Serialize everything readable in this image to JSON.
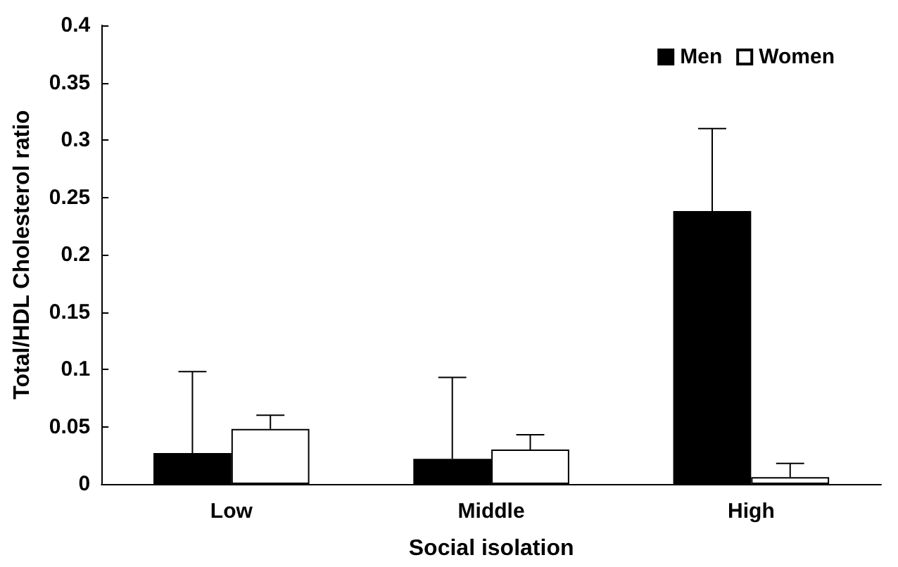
{
  "chart_data": {
    "type": "bar",
    "xlabel": "Social isolation",
    "ylabel": "Total/HDL Cholesterol ratio",
    "categories": [
      "Low",
      "Middle",
      "High"
    ],
    "series": [
      {
        "name": "Men",
        "color": "#000000",
        "values": [
          0.027,
          0.022,
          0.238
        ],
        "errors": [
          [
            0.027,
            0.098
          ],
          [
            0.022,
            0.093
          ],
          [
            0.238,
            0.31
          ]
        ]
      },
      {
        "name": "Women",
        "color": "#ffffff",
        "values": [
          0.048,
          0.03,
          0.006
        ],
        "errors": [
          [
            0.048,
            0.06
          ],
          [
            0.03,
            0.043
          ],
          [
            0.006,
            0.018
          ]
        ]
      }
    ],
    "ylim": [
      0,
      0.4
    ],
    "yticks": [
      0,
      0.05,
      0.1,
      0.15,
      0.2,
      0.25,
      0.3,
      0.35,
      0.4
    ],
    "grid": false,
    "legend": "top right"
  }
}
